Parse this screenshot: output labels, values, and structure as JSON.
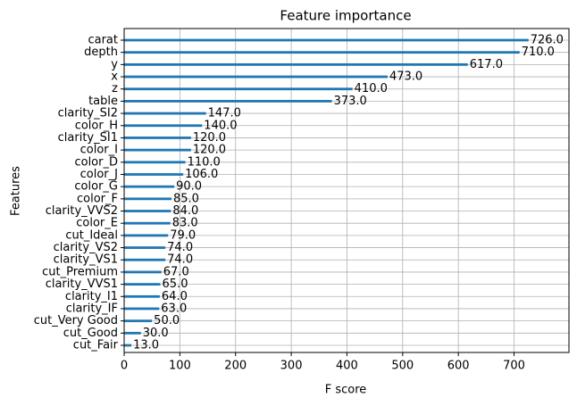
{
  "chart_data": {
    "type": "barh",
    "title": "Feature importance",
    "x_label": "F score",
    "y_label": "Features",
    "categories": [
      "carat",
      "depth",
      "y",
      "x",
      "z",
      "table",
      "clarity_SI2",
      "color_H",
      "clarity_SI1",
      "color_I",
      "color_D",
      "color_J",
      "color_G",
      "color_F",
      "clarity_VVS2",
      "color_E",
      "cut_Ideal",
      "clarity_VS2",
      "clarity_VS1",
      "cut_Premium",
      "clarity_VVS1",
      "clarity_I1",
      "clarity_IF",
      "cut_Very Good",
      "cut_Good",
      "cut_Fair"
    ],
    "values": [
      726,
      710,
      617,
      473,
      410,
      373,
      147,
      140,
      120,
      120,
      110,
      106,
      90,
      85,
      84,
      83,
      79,
      74,
      74,
      67,
      65,
      64,
      63,
      50,
      30,
      13
    ],
    "value_labels": [
      "726.0",
      "710.0",
      "617.0",
      "473.0",
      "410.0",
      "373.0",
      "147.0",
      "140.0",
      "120.0",
      "120.0",
      "110.0",
      "106.0",
      "90.0",
      "85.0",
      "84.0",
      "83.0",
      "79.0",
      "74.0",
      "74.0",
      "67.0",
      "65.0",
      "64.0",
      "63.0",
      "50.0",
      "30.0",
      "13.0"
    ],
    "color": "#1f77b4",
    "xlim": [
      0,
      798.6
    ],
    "xticks": [
      0,
      100,
      200,
      300,
      400,
      500,
      600,
      700
    ],
    "grid": true
  }
}
